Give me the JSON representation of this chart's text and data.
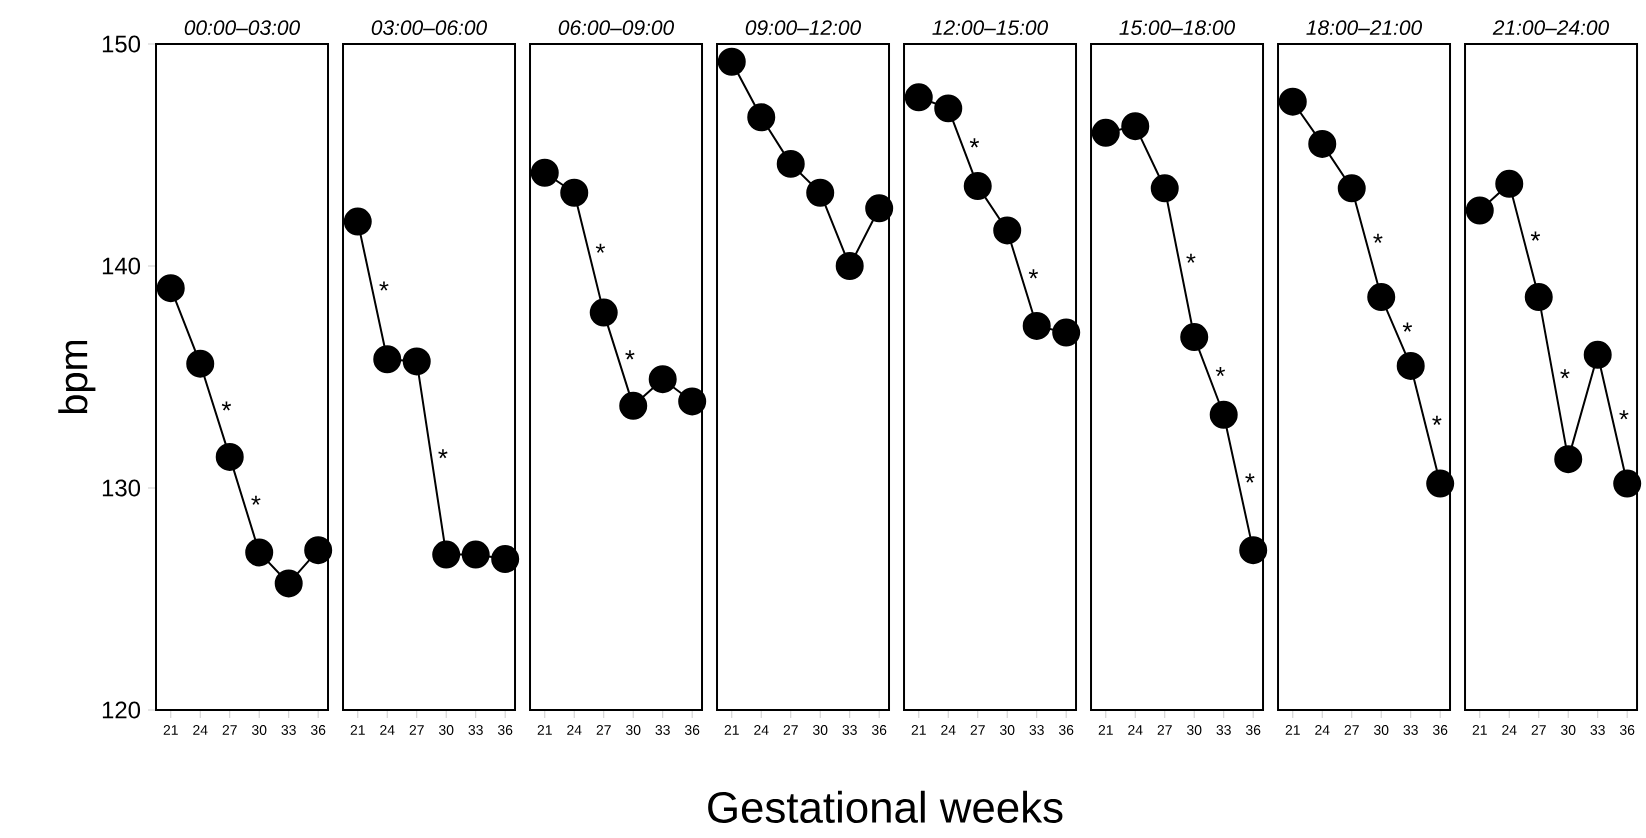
{
  "chart_data": [
    {
      "type": "line",
      "title": "00:00–03:00",
      "ylabel": "bpm",
      "x": [
        21,
        24,
        27,
        30,
        33,
        36
      ],
      "values": [
        139,
        135.6,
        131.4,
        127.1,
        125.7,
        127.2
      ],
      "color": "#000000",
      "marker": "circle",
      "xlim": [
        19.5,
        37
      ],
      "xticks": [
        21,
        24,
        27,
        30,
        33,
        36
      ],
      "ylim": [
        120,
        150
      ],
      "yticks": [
        120,
        130,
        140,
        150
      ],
      "annotations": [
        {
          "text": "*",
          "x": 25.5,
          "y": 133.5
        },
        {
          "text": "*",
          "x": 28.5,
          "y": 129.25
        }
      ]
    },
    {
      "type": "line",
      "title": "03:00–06:00",
      "x": [
        21,
        24,
        27,
        30,
        33,
        36
      ],
      "values": [
        142,
        135.8,
        135.7,
        127,
        127,
        126.8
      ],
      "color": "#000000",
      "marker": "circle",
      "xlim": [
        19.5,
        37
      ],
      "xticks": [
        21,
        24,
        27,
        30,
        33,
        36
      ],
      "ylim": [
        120,
        150
      ],
      "tick_labels": "x",
      "annotations": [
        {
          "text": "*",
          "x": 22.5,
          "y": 138.9
        },
        {
          "text": "*",
          "x": 28.5,
          "y": 131.35
        }
      ]
    },
    {
      "type": "line",
      "title": "06:00–09:00",
      "x": [
        21,
        24,
        27,
        30,
        33,
        36
      ],
      "values": [
        144.2,
        143.3,
        137.9,
        133.7,
        134.9,
        133.9
      ],
      "color": "#000000",
      "marker": "circle",
      "xlim": [
        19.5,
        37
      ],
      "xticks": [
        21,
        24,
        27,
        30,
        33,
        36
      ],
      "ylim": [
        120,
        150
      ],
      "tick_labels": "x",
      "annotations": [
        {
          "text": "*",
          "x": 25.5,
          "y": 140.6
        },
        {
          "text": "*",
          "x": 28.5,
          "y": 135.8
        }
      ]
    },
    {
      "type": "line",
      "title": "09:00–12:00",
      "xlabel": "Gestational weeks",
      "x": [
        21,
        24,
        27,
        30,
        33,
        36
      ],
      "values": [
        149.2,
        146.7,
        144.6,
        143.3,
        140,
        142.6
      ],
      "color": "#000000",
      "marker": "circle",
      "xlim": [
        19.5,
        37
      ],
      "xticks": [
        21,
        24,
        27,
        30,
        33,
        36
      ],
      "ylim": [
        120,
        150
      ],
      "tick_labels": "x"
    },
    {
      "type": "line",
      "title": "12:00–15:00",
      "x": [
        21,
        24,
        27,
        30,
        33,
        36
      ],
      "values": [
        147.6,
        147.1,
        143.6,
        141.6,
        137.3,
        137
      ],
      "color": "#000000",
      "marker": "circle",
      "xlim": [
        19.5,
        37
      ],
      "xticks": [
        21,
        24,
        27,
        30,
        33,
        36
      ],
      "ylim": [
        120,
        150
      ],
      "tick_labels": "x",
      "annotations": [
        {
          "text": "*",
          "x": 25.5,
          "y": 145.35
        },
        {
          "text": "*",
          "x": 31.5,
          "y": 139.45
        }
      ]
    },
    {
      "type": "line",
      "title": "15:00–18:00",
      "x": [
        21,
        24,
        27,
        30,
        33,
        36
      ],
      "values": [
        146,
        146.3,
        143.5,
        136.8,
        133.3,
        127.2
      ],
      "color": "#000000",
      "marker": "circle",
      "xlim": [
        19.5,
        37
      ],
      "xticks": [
        21,
        24,
        27,
        30,
        33,
        36
      ],
      "ylim": [
        120,
        150
      ],
      "tick_labels": "x",
      "annotations": [
        {
          "text": "*",
          "x": 28.5,
          "y": 140.15
        },
        {
          "text": "*",
          "x": 31.5,
          "y": 135.05
        },
        {
          "text": "*",
          "x": 34.5,
          "y": 130.25
        }
      ]
    },
    {
      "type": "line",
      "title": "18:00–21:00",
      "x": [
        21,
        24,
        27,
        30,
        33,
        36
      ],
      "values": [
        147.4,
        145.5,
        143.5,
        138.6,
        135.5,
        130.2
      ],
      "color": "#000000",
      "marker": "circle",
      "xlim": [
        19.5,
        37
      ],
      "xticks": [
        21,
        24,
        27,
        30,
        33,
        36
      ],
      "ylim": [
        120,
        150
      ],
      "tick_labels": "x",
      "annotations": [
        {
          "text": "*",
          "x": 28.5,
          "y": 141.05
        },
        {
          "text": "*",
          "x": 31.5,
          "y": 137.05
        },
        {
          "text": "*",
          "x": 34.5,
          "y": 132.85
        }
      ]
    },
    {
      "type": "line",
      "title": "21:00–24:00",
      "x": [
        21,
        24,
        27,
        30,
        33,
        36
      ],
      "values": [
        142.5,
        143.7,
        138.6,
        131.3,
        136,
        130.2
      ],
      "color": "#000000",
      "marker": "circle",
      "xlim": [
        19.5,
        37
      ],
      "xticks": [
        21,
        24,
        27,
        30,
        33,
        36
      ],
      "ylim": [
        120,
        150
      ],
      "tick_labels": "x",
      "annotations": [
        {
          "text": "*",
          "x": 25.5,
          "y": 141.15
        },
        {
          "text": "*",
          "x": 28.5,
          "y": 134.95
        },
        {
          "text": "*",
          "x": 34.5,
          "y": 133.1
        }
      ]
    }
  ]
}
